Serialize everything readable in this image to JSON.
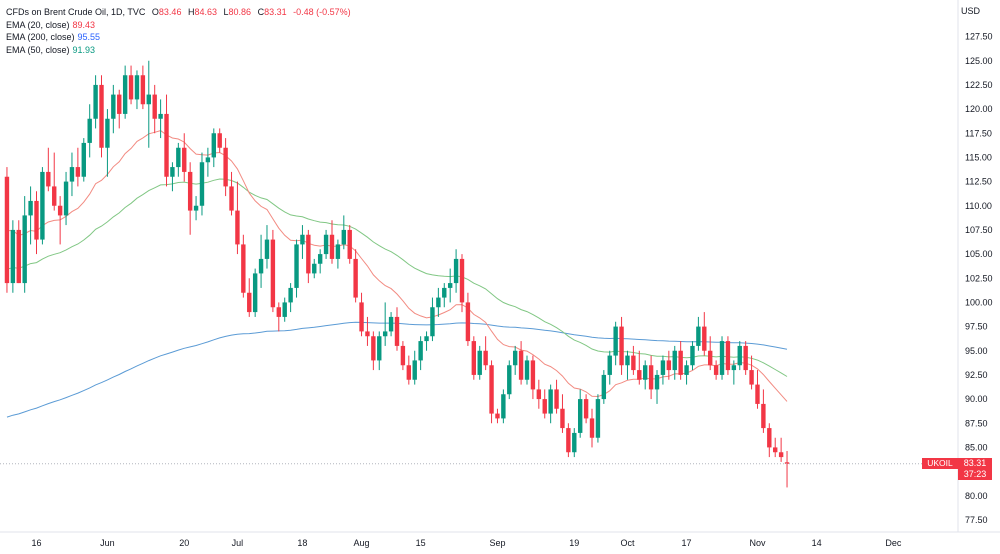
{
  "header": {
    "title": "CFDs on Brent Crude Oil, 1D, TVC",
    "ohlc": {
      "o_label": "O",
      "o": "83.46",
      "h_label": "H",
      "h": "84.63",
      "l_label": "L",
      "l": "80.86",
      "c_label": "C",
      "c": "83.31",
      "chg": "-0.48 (-0.57%)"
    },
    "indicators": [
      {
        "label": "EMA (20, close)",
        "value": "89.43",
        "color": "#f23645"
      },
      {
        "label": "EMA (200, close)",
        "value": "95.55",
        "color": "#2962ff"
      },
      {
        "label": "EMA (50, close)",
        "value": "91.93",
        "color": "#089981"
      }
    ]
  },
  "axis": {
    "currency": "USD",
    "symbol": "UKOIL",
    "last_price": "83.31",
    "countdown": "37:23"
  },
  "chart_data": {
    "type": "candlestick",
    "yaxis": {
      "ticks": [
        77.5,
        80.0,
        82.5,
        85.0,
        87.5,
        90.0,
        92.5,
        95.0,
        97.5,
        100.0,
        102.5,
        105.0,
        107.5,
        110.0,
        112.5,
        115.0,
        117.5,
        120.0,
        122.5,
        125.0,
        127.5
      ],
      "range": [
        76.25,
        130.25
      ]
    },
    "xaxis": {
      "labels": [
        {
          "text": "16",
          "i": 5
        },
        {
          "text": "Jun",
          "i": 17
        },
        {
          "text": "20",
          "i": 30
        },
        {
          "text": "Jul",
          "i": 39
        },
        {
          "text": "18",
          "i": 50
        },
        {
          "text": "Aug",
          "i": 60
        },
        {
          "text": "15",
          "i": 70
        },
        {
          "text": "Sep",
          "i": 83
        },
        {
          "text": "19",
          "i": 96
        },
        {
          "text": "Oct",
          "i": 105
        },
        {
          "text": "17",
          "i": 115
        },
        {
          "text": "Nov",
          "i": 127
        },
        {
          "text": "14",
          "i": 137
        },
        {
          "text": "Dec",
          "i": 150
        }
      ]
    },
    "up_color": "#089981",
    "down_color": "#f23645",
    "candles": [
      [
        113.0,
        114.0,
        101.0,
        102.0
      ],
      [
        102.0,
        108.5,
        101.0,
        107.5
      ],
      [
        107.5,
        108.5,
        102.0,
        102.0
      ],
      [
        102.0,
        111.0,
        101.0,
        109.0
      ],
      [
        109.0,
        112.0,
        106.0,
        110.5
      ],
      [
        110.5,
        111.5,
        105.0,
        106.5
      ],
      [
        106.5,
        114.0,
        106.0,
        113.5
      ],
      [
        113.5,
        116.0,
        111.5,
        112.0
      ],
      [
        112.0,
        115.5,
        109.5,
        110.0
      ],
      [
        110.0,
        111.0,
        106.0,
        109.0
      ],
      [
        109.0,
        113.5,
        108.0,
        112.5
      ],
      [
        112.5,
        115.5,
        111.0,
        114.0
      ],
      [
        114.0,
        116.0,
        112.0,
        113.0
      ],
      [
        113.0,
        117.0,
        112.5,
        116.5
      ],
      [
        116.5,
        120.5,
        115.0,
        119.0
      ],
      [
        119.0,
        123.5,
        118.0,
        122.5
      ],
      [
        122.5,
        123.5,
        115.0,
        116.0
      ],
      [
        116.0,
        120.0,
        113.0,
        119.0
      ],
      [
        119.0,
        122.5,
        117.5,
        121.5
      ],
      [
        121.5,
        122.0,
        118.0,
        119.5
      ],
      [
        119.5,
        124.5,
        119.0,
        123.5
      ],
      [
        123.5,
        124.5,
        120.5,
        121.0
      ],
      [
        121.0,
        124.0,
        120.0,
        123.5
      ],
      [
        123.5,
        124.5,
        120.0,
        120.5
      ],
      [
        120.5,
        125.0,
        116.0,
        121.5
      ],
      [
        121.5,
        122.5,
        117.5,
        119.0
      ],
      [
        119.0,
        121.0,
        117.0,
        119.5
      ],
      [
        119.5,
        121.5,
        112.0,
        113.0
      ],
      [
        113.0,
        114.5,
        111.5,
        114.0
      ],
      [
        114.0,
        116.5,
        113.0,
        116.0
      ],
      [
        116.0,
        117.5,
        112.5,
        113.5
      ],
      [
        113.5,
        114.5,
        107.0,
        109.5
      ],
      [
        109.5,
        111.0,
        108.5,
        110.0
      ],
      [
        110.0,
        115.5,
        109.0,
        114.5
      ],
      [
        114.5,
        116.0,
        113.0,
        115.0
      ],
      [
        115.0,
        118.0,
        114.0,
        117.5
      ],
      [
        117.5,
        118.0,
        115.5,
        116.0
      ],
      [
        116.0,
        117.0,
        111.0,
        112.0
      ],
      [
        112.0,
        113.5,
        109.0,
        109.5
      ],
      [
        109.5,
        112.5,
        105.0,
        106.0
      ],
      [
        106.0,
        107.0,
        100.5,
        101.0
      ],
      [
        101.0,
        102.5,
        98.5,
        99.0
      ],
      [
        99.0,
        103.5,
        98.5,
        103.0
      ],
      [
        103.0,
        107.0,
        101.5,
        104.5
      ],
      [
        104.5,
        108.0,
        103.5,
        106.5
      ],
      [
        106.5,
        107.5,
        99.0,
        99.5
      ],
      [
        99.5,
        100.0,
        97.0,
        98.5
      ],
      [
        98.5,
        100.5,
        98.0,
        100.0
      ],
      [
        100.0,
        102.0,
        99.0,
        101.5
      ],
      [
        101.5,
        106.5,
        100.5,
        106.0
      ],
      [
        106.0,
        108.0,
        104.5,
        107.0
      ],
      [
        107.0,
        107.5,
        102.0,
        103.0
      ],
      [
        103.0,
        104.5,
        102.5,
        104.0
      ],
      [
        104.0,
        105.5,
        103.0,
        105.0
      ],
      [
        105.0,
        107.5,
        104.5,
        107.0
      ],
      [
        107.0,
        108.5,
        104.0,
        104.5
      ],
      [
        104.5,
        106.5,
        103.5,
        106.0
      ],
      [
        106.0,
        109.0,
        105.5,
        107.5
      ],
      [
        107.5,
        108.0,
        104.0,
        104.5
      ],
      [
        104.5,
        105.5,
        100.0,
        100.5
      ],
      [
        100.0,
        101.0,
        96.5,
        97.0
      ],
      [
        97.0,
        98.5,
        95.5,
        96.5
      ],
      [
        96.5,
        97.0,
        93.0,
        94.0
      ],
      [
        94.0,
        97.0,
        93.0,
        96.5
      ],
      [
        96.5,
        100.0,
        95.5,
        97.0
      ],
      [
        97.0,
        99.0,
        96.5,
        98.5
      ],
      [
        98.5,
        99.5,
        95.0,
        95.5
      ],
      [
        95.5,
        96.0,
        93.0,
        93.5
      ],
      [
        93.5,
        94.5,
        91.5,
        92.0
      ],
      [
        92.0,
        95.0,
        91.5,
        94.0
      ],
      [
        94.0,
        96.5,
        93.0,
        96.0
      ],
      [
        96.0,
        97.0,
        95.0,
        96.5
      ],
      [
        96.5,
        100.5,
        96.0,
        99.5
      ],
      [
        99.5,
        101.5,
        98.5,
        100.5
      ],
      [
        100.5,
        102.0,
        99.5,
        101.5
      ],
      [
        101.5,
        103.5,
        100.0,
        102.0
      ],
      [
        102.0,
        105.5,
        101.0,
        104.5
      ],
      [
        104.5,
        105.0,
        99.0,
        100.0
      ],
      [
        100.0,
        101.0,
        95.5,
        96.0
      ],
      [
        96.0,
        96.5,
        92.0,
        92.5
      ],
      [
        92.5,
        95.5,
        92.0,
        95.0
      ],
      [
        95.0,
        96.5,
        93.0,
        93.5
      ],
      [
        93.5,
        94.0,
        87.5,
        88.5
      ],
      [
        88.5,
        89.0,
        87.5,
        88.0
      ],
      [
        88.0,
        91.0,
        87.5,
        90.5
      ],
      [
        90.5,
        94.0,
        90.0,
        93.5
      ],
      [
        93.5,
        95.5,
        92.5,
        95.0
      ],
      [
        95.0,
        96.0,
        91.5,
        92.0
      ],
      [
        92.0,
        94.5,
        91.5,
        94.0
      ],
      [
        94.0,
        94.5,
        90.0,
        91.0
      ],
      [
        91.0,
        92.0,
        89.0,
        90.0
      ],
      [
        90.0,
        91.0,
        88.0,
        88.5
      ],
      [
        88.5,
        91.5,
        87.5,
        91.0
      ],
      [
        91.0,
        92.0,
        88.5,
        89.0
      ],
      [
        89.0,
        90.5,
        86.5,
        87.0
      ],
      [
        87.0,
        87.5,
        84.0,
        84.5
      ],
      [
        84.5,
        87.0,
        84.0,
        86.5
      ],
      [
        86.5,
        91.0,
        86.0,
        90.0
      ],
      [
        90.0,
        90.5,
        87.5,
        88.0
      ],
      [
        88.0,
        89.0,
        85.0,
        86.0
      ],
      [
        86.0,
        90.5,
        85.5,
        90.0
      ],
      [
        90.0,
        93.0,
        89.5,
        92.5
      ],
      [
        92.5,
        95.0,
        91.5,
        94.5
      ],
      [
        94.5,
        98.0,
        93.5,
        97.5
      ],
      [
        97.5,
        98.5,
        92.5,
        93.5
      ],
      [
        93.5,
        95.0,
        92.0,
        94.5
      ],
      [
        94.5,
        95.5,
        92.5,
        93.0
      ],
      [
        93.0,
        95.0,
        91.5,
        92.0
      ],
      [
        92.0,
        94.0,
        91.0,
        93.5
      ],
      [
        93.5,
        94.5,
        90.0,
        91.0
      ],
      [
        91.0,
        93.0,
        89.5,
        92.5
      ],
      [
        92.5,
        94.5,
        91.5,
        94.0
      ],
      [
        94.0,
        95.0,
        92.0,
        93.0
      ],
      [
        93.0,
        95.5,
        92.0,
        95.0
      ],
      [
        95.0,
        96.0,
        92.0,
        92.5
      ],
      [
        92.5,
        94.0,
        91.5,
        93.5
      ],
      [
        93.5,
        96.0,
        93.0,
        95.5
      ],
      [
        95.5,
        98.5,
        95.0,
        97.5
      ],
      [
        97.5,
        99.0,
        94.5,
        95.0
      ],
      [
        95.0,
        96.5,
        93.0,
        93.5
      ],
      [
        93.5,
        94.0,
        92.0,
        92.5
      ],
      [
        92.5,
        96.5,
        92.0,
        96.0
      ],
      [
        96.0,
        96.5,
        92.5,
        93.0
      ],
      [
        93.0,
        94.0,
        91.5,
        93.5
      ],
      [
        93.5,
        96.0,
        93.0,
        95.5
      ],
      [
        95.5,
        96.0,
        92.5,
        93.0
      ],
      [
        93.0,
        94.5,
        91.0,
        91.5
      ],
      [
        91.5,
        93.0,
        89.0,
        89.5
      ],
      [
        89.5,
        91.0,
        86.5,
        87.0
      ],
      [
        87.0,
        87.5,
        84.0,
        85.0
      ],
      [
        85.0,
        86.0,
        84.0,
        84.5
      ],
      [
        84.5,
        86.0,
        83.5,
        84.0
      ],
      [
        83.46,
        84.63,
        80.86,
        83.31
      ]
    ]
  }
}
